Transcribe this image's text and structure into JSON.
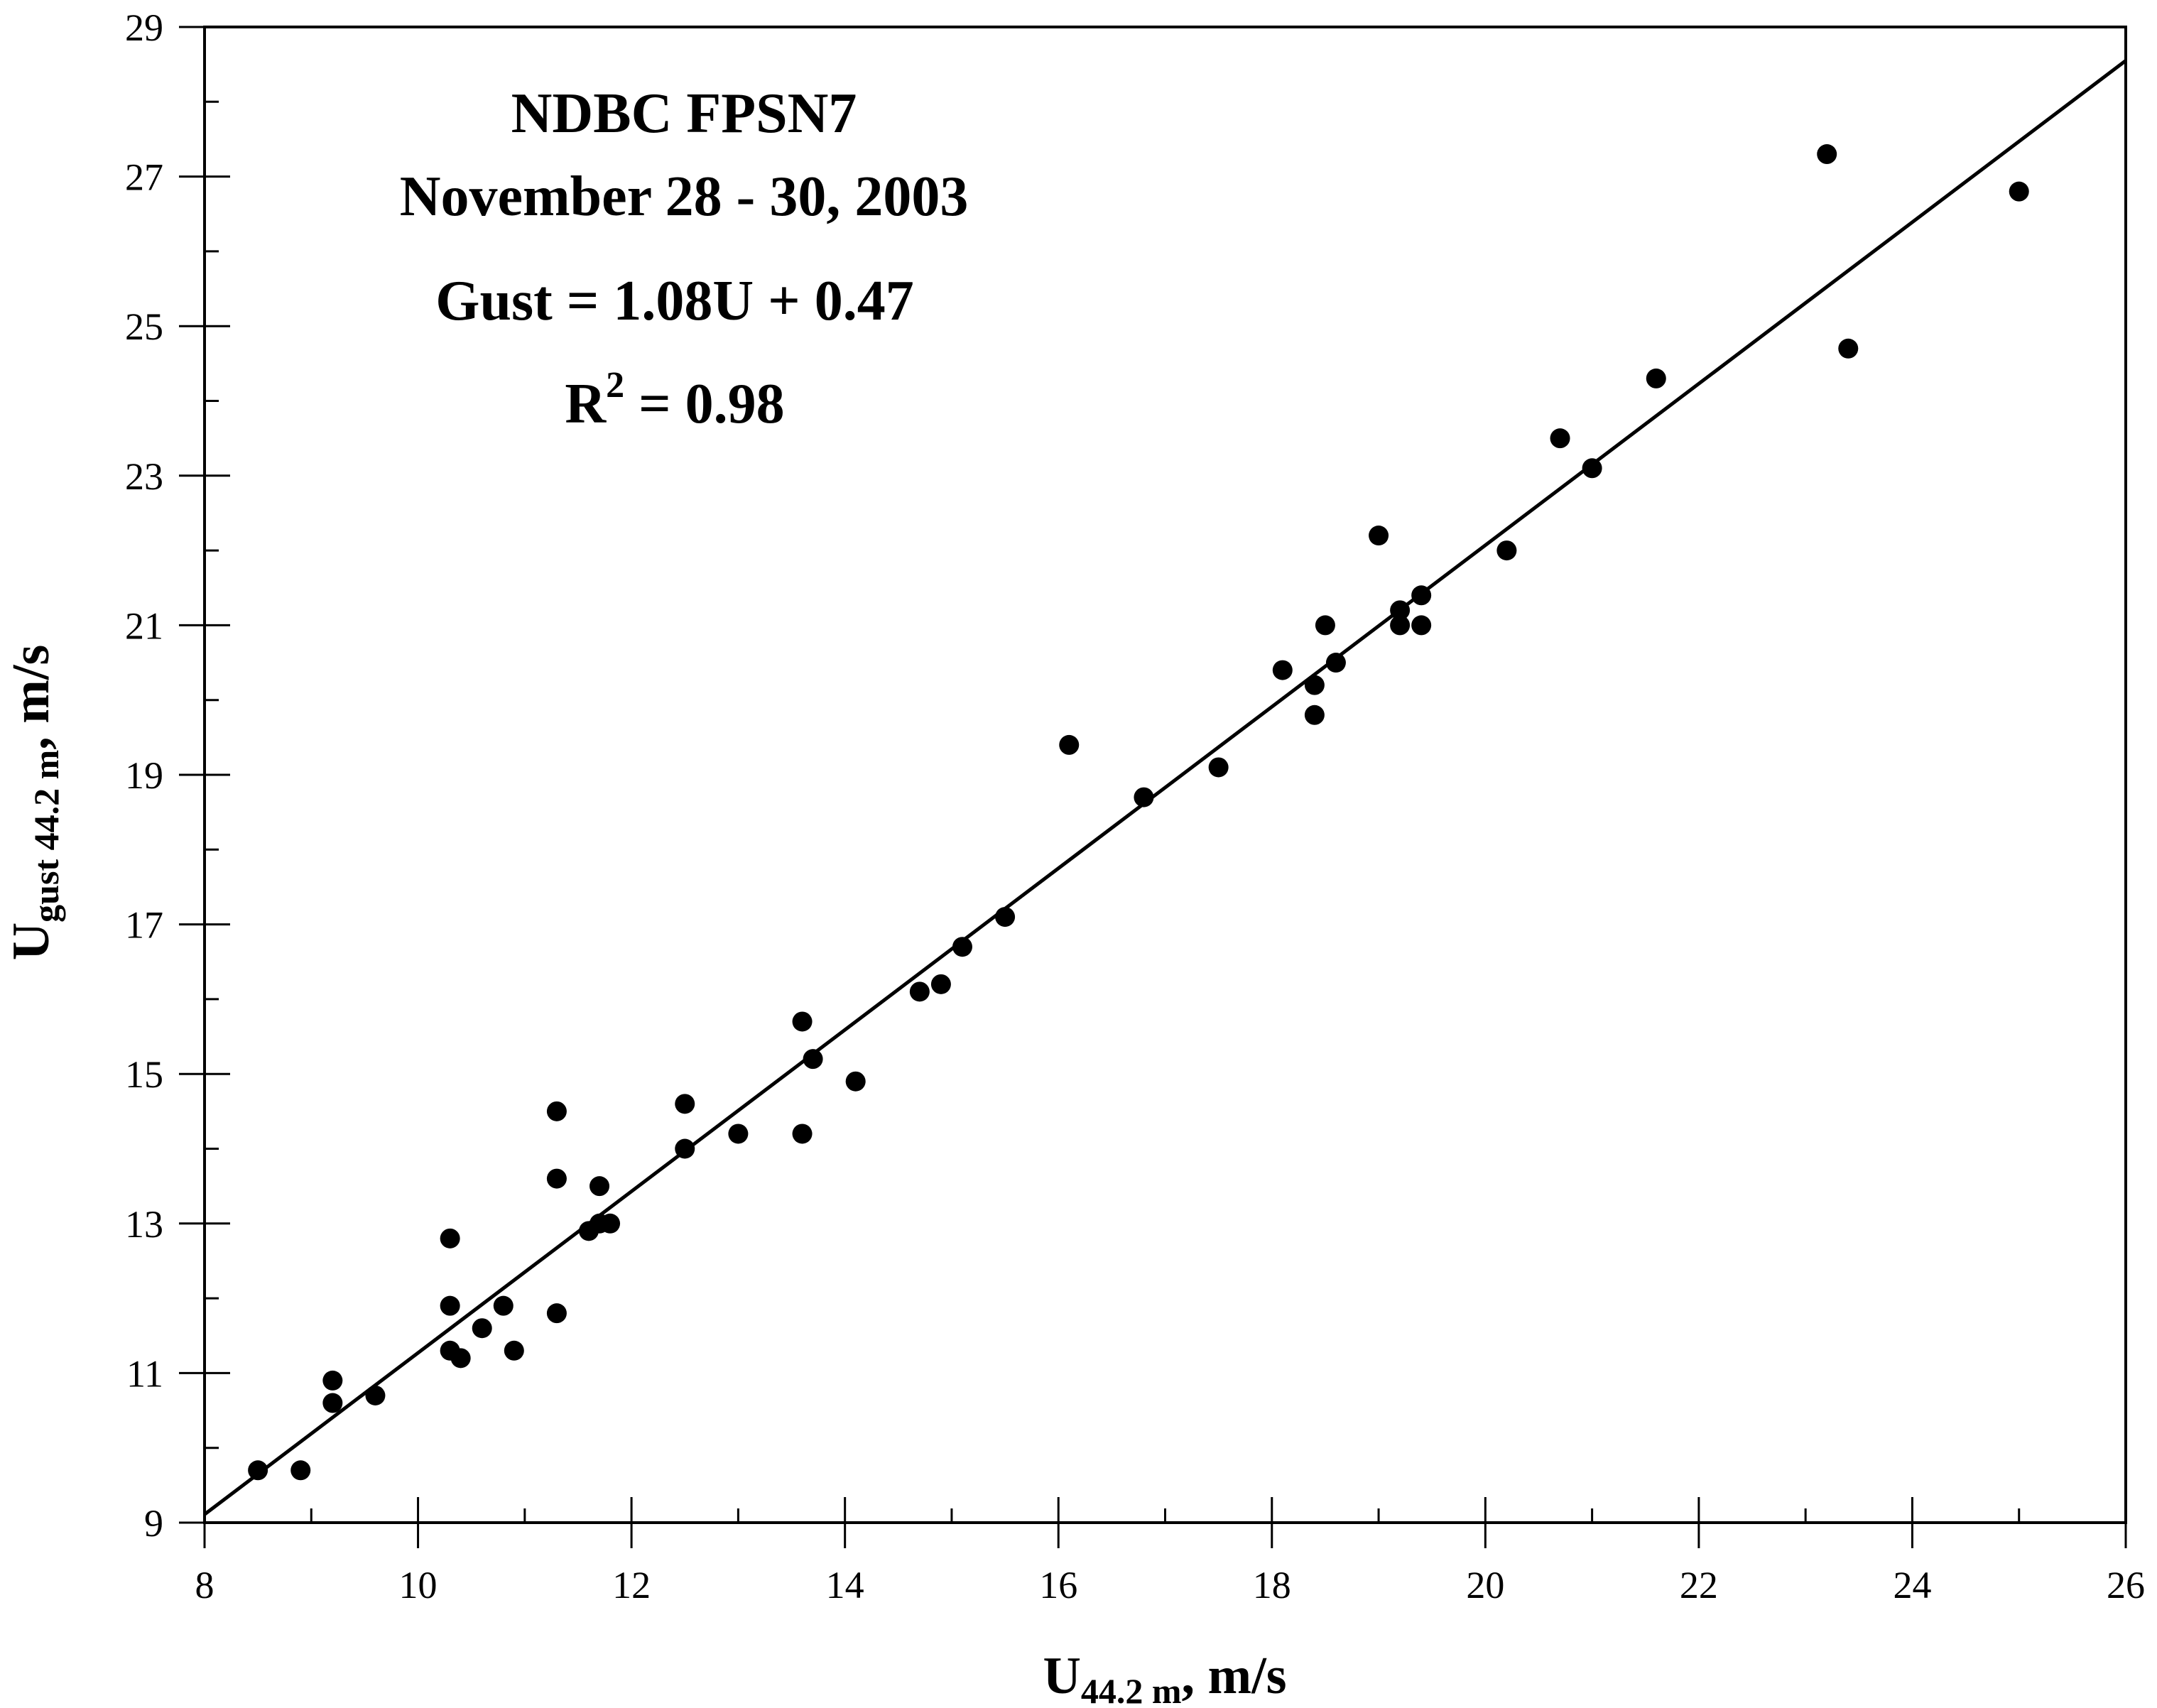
{
  "chart_data": {
    "type": "scatter",
    "title_lines": [
      "NDBC FPSN7",
      "November 28 - 30, 2003"
    ],
    "equation": "Gust = 1.08U + 0.47",
    "r2": {
      "base": "R",
      "sup": "2",
      "rest": " = 0.98"
    },
    "xlabel": {
      "main": "U",
      "sub": "44.2 m",
      "tail": ", m/s"
    },
    "ylabel": {
      "main": "U",
      "sub": "gust 44.2 m",
      "tail": ", m/s"
    },
    "xlim": [
      8,
      26
    ],
    "ylim": [
      9,
      29
    ],
    "x_ticks": [
      8,
      10,
      12,
      14,
      16,
      18,
      20,
      22,
      24,
      26
    ],
    "y_ticks": [
      9,
      11,
      13,
      15,
      17,
      19,
      21,
      23,
      25,
      27,
      29
    ],
    "x_minor_step": 1,
    "y_minor_step": 1,
    "grid": false,
    "fit": {
      "slope": 1.08,
      "intercept": 0.47
    },
    "colors": {
      "marker": "#000000",
      "line": "#000000",
      "axes": "#000000"
    },
    "points": [
      [
        8.5,
        9.7
      ],
      [
        8.9,
        9.7
      ],
      [
        9.2,
        10.9
      ],
      [
        9.2,
        10.6
      ],
      [
        9.6,
        10.7
      ],
      [
        10.3,
        12.8
      ],
      [
        10.3,
        11.9
      ],
      [
        10.3,
        11.3
      ],
      [
        10.4,
        11.2
      ],
      [
        10.6,
        11.6
      ],
      [
        10.8,
        11.9
      ],
      [
        10.9,
        11.3
      ],
      [
        11.3,
        14.5
      ],
      [
        11.3,
        13.6
      ],
      [
        11.3,
        11.8
      ],
      [
        11.6,
        12.9
      ],
      [
        11.7,
        13.5
      ],
      [
        11.7,
        13.0
      ],
      [
        11.8,
        13.0
      ],
      [
        12.5,
        14.6
      ],
      [
        12.5,
        14.0
      ],
      [
        13.0,
        14.2
      ],
      [
        13.6,
        15.7
      ],
      [
        13.6,
        14.2
      ],
      [
        13.7,
        15.2
      ],
      [
        14.1,
        14.9
      ],
      [
        14.7,
        16.1
      ],
      [
        14.9,
        16.2
      ],
      [
        15.1,
        16.7
      ],
      [
        15.5,
        17.1
      ],
      [
        16.1,
        19.4
      ],
      [
        16.8,
        18.7
      ],
      [
        17.5,
        19.1
      ],
      [
        18.1,
        20.4
      ],
      [
        18.4,
        20.2
      ],
      [
        18.4,
        19.8
      ],
      [
        18.5,
        21.0
      ],
      [
        18.6,
        20.5
      ],
      [
        19.0,
        22.2
      ],
      [
        19.2,
        21.2
      ],
      [
        19.2,
        21.0
      ],
      [
        19.4,
        21.4
      ],
      [
        19.4,
        21.0
      ],
      [
        20.2,
        22.0
      ],
      [
        20.7,
        23.5
      ],
      [
        21.0,
        23.1
      ],
      [
        21.6,
        24.3
      ],
      [
        23.2,
        27.3
      ],
      [
        23.4,
        24.7
      ],
      [
        25.0,
        26.8
      ]
    ]
  }
}
